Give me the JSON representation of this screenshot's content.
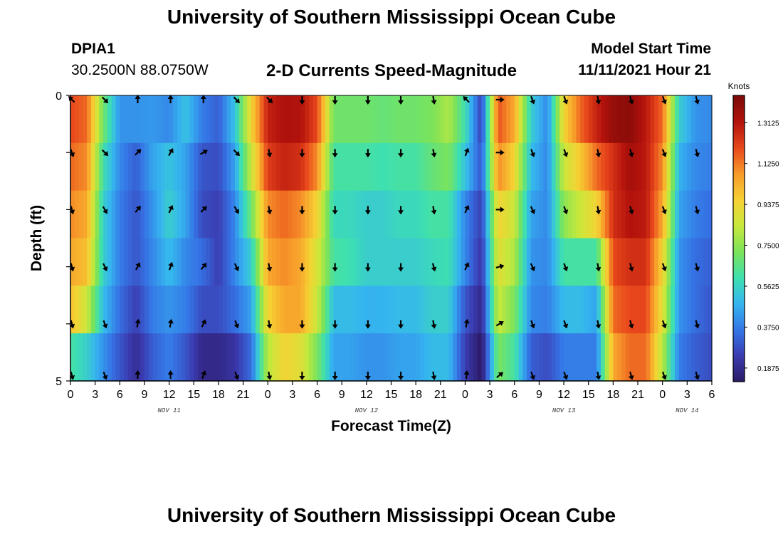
{
  "page": {
    "title_top": "University of Southern Mississippi Ocean Cube",
    "title_bottom": "University of Southern Mississippi Ocean Cube"
  },
  "station": {
    "id": "DPIA1",
    "coords": "30.2500N  88.0750W"
  },
  "model": {
    "start_label": "Model Start Time",
    "start_value": "11/11/2021 Hour 21"
  },
  "colors": {
    "palette": [
      "#2b1a66",
      "#3b3bb0",
      "#3575e6",
      "#35b5ef",
      "#3ee0b0",
      "#7be35a",
      "#c8e83c",
      "#f6d233",
      "#f79a2a",
      "#e8471c",
      "#b3120c",
      "#7a0a08"
    ]
  },
  "chart_data": {
    "type": "heatmap",
    "title": "2-D Currents Speed-Magnitude",
    "xlabel": "Forecast Time(Z)",
    "ylabel": "Depth (ft)",
    "x_tick_labels": [
      "0",
      "3",
      "6",
      "9",
      "12",
      "15",
      "18",
      "21",
      "0",
      "3",
      "6",
      "9",
      "12",
      "15",
      "18",
      "21",
      "0",
      "3",
      "6",
      "9",
      "12",
      "15",
      "18",
      "21",
      "0",
      "3",
      "6"
    ],
    "x_start_hour": 0,
    "x_end_hour": 78,
    "x_tick_step_hours": 3,
    "date_labels": [
      {
        "text": "NOV 11",
        "hour": 12
      },
      {
        "text": "NOV 12",
        "hour": 36
      },
      {
        "text": "NOV 13",
        "hour": 60
      },
      {
        "text": "NOV 14",
        "hour": 75
      }
    ],
    "y_range": [
      0,
      5
    ],
    "y_tick_labels": [
      "0",
      "",
      "",
      "",
      "",
      "5"
    ],
    "y_ticks": [
      0,
      1,
      2,
      3,
      4,
      5
    ],
    "colorbar": {
      "label": "Knots",
      "range": [
        0.125,
        1.4375
      ],
      "tick_values": [
        1.3125,
        1.125,
        0.9375,
        0.75,
        0.5625,
        0.375,
        0.1875
      ],
      "tick_labels": [
        "1.3125",
        "1.1250",
        "0.9375",
        "0.7500",
        "0.5625",
        "0.3750",
        "0.1875"
      ]
    },
    "time_keys_hours": [
      0,
      2,
      4,
      6,
      8,
      10,
      12,
      14,
      16,
      18,
      20,
      22,
      24,
      26,
      28,
      30,
      32,
      34,
      36,
      38,
      40,
      42,
      44,
      46,
      48,
      50,
      52,
      54,
      56,
      58,
      60,
      62,
      64,
      66,
      68,
      70,
      72,
      74,
      76,
      78
    ],
    "depth_rows": [
      [
        1.2,
        1.15,
        0.7,
        0.42,
        0.42,
        0.43,
        0.4,
        0.52,
        0.38,
        0.32,
        0.52,
        0.95,
        1.28,
        1.33,
        1.32,
        1.2,
        0.7,
        0.7,
        0.7,
        0.68,
        0.7,
        0.7,
        0.72,
        0.8,
        0.6,
        0.25,
        1.18,
        1.05,
        0.55,
        0.4,
        0.95,
        1.15,
        1.28,
        1.38,
        1.4,
        1.3,
        1.15,
        0.55,
        0.42,
        0.4
      ],
      [
        1.15,
        1.1,
        0.6,
        0.4,
        0.32,
        0.45,
        0.52,
        0.45,
        0.3,
        0.28,
        0.45,
        0.85,
        1.22,
        1.28,
        1.25,
        1.1,
        0.62,
        0.62,
        0.62,
        0.6,
        0.62,
        0.62,
        0.68,
        0.72,
        0.52,
        0.3,
        1.1,
        0.95,
        0.5,
        0.4,
        0.85,
        0.98,
        1.15,
        1.25,
        1.35,
        1.3,
        1.1,
        0.48,
        0.4,
        0.38
      ],
      [
        1.1,
        1.05,
        0.55,
        0.38,
        0.3,
        0.42,
        0.55,
        0.45,
        0.28,
        0.25,
        0.4,
        0.7,
        1.1,
        1.15,
        1.1,
        0.95,
        0.58,
        0.58,
        0.55,
        0.55,
        0.58,
        0.58,
        0.62,
        0.62,
        0.4,
        0.25,
        0.95,
        0.85,
        0.45,
        0.4,
        0.75,
        0.85,
        0.95,
        1.25,
        1.32,
        1.3,
        1.05,
        0.45,
        0.38,
        0.35
      ],
      [
        1.05,
        1.0,
        0.55,
        0.38,
        0.3,
        0.4,
        0.5,
        0.4,
        0.35,
        0.25,
        0.4,
        0.55,
        1.05,
        1.1,
        1.05,
        0.88,
        0.62,
        0.6,
        0.55,
        0.55,
        0.55,
        0.55,
        0.58,
        0.6,
        0.4,
        0.22,
        0.9,
        0.8,
        0.42,
        0.4,
        0.62,
        0.62,
        0.62,
        1.2,
        1.25,
        1.25,
        0.95,
        0.42,
        0.35,
        0.32
      ],
      [
        1.0,
        0.85,
        0.5,
        0.35,
        0.25,
        0.38,
        0.42,
        0.38,
        0.28,
        0.28,
        0.35,
        0.45,
        0.95,
        1.05,
        1.05,
        0.85,
        0.5,
        0.5,
        0.48,
        0.48,
        0.5,
        0.5,
        0.55,
        0.55,
        0.3,
        0.18,
        0.85,
        0.72,
        0.4,
        0.38,
        0.5,
        0.5,
        0.45,
        1.15,
        1.2,
        1.2,
        0.9,
        0.42,
        0.35,
        0.3
      ],
      [
        0.62,
        0.55,
        0.42,
        0.3,
        0.2,
        0.32,
        0.38,
        0.3,
        0.18,
        0.18,
        0.22,
        0.35,
        0.82,
        0.95,
        0.9,
        0.72,
        0.45,
        0.45,
        0.42,
        0.42,
        0.45,
        0.45,
        0.5,
        0.5,
        0.25,
        0.12,
        0.72,
        0.62,
        0.32,
        0.28,
        0.38,
        0.38,
        0.38,
        1.05,
        1.15,
        1.15,
        0.82,
        0.38,
        0.32,
        0.28
      ]
    ],
    "arrow_hours": [
      0,
      4,
      8,
      12,
      16,
      20,
      24,
      28,
      32,
      36,
      40,
      44,
      48,
      52,
      56,
      60,
      64,
      68,
      72,
      76
    ],
    "arrow_directions_deg": [
      [
        315,
        135,
        0,
        0,
        0,
        135,
        135,
        180,
        180,
        180,
        180,
        170,
        315,
        90,
        160,
        160,
        170,
        165,
        160,
        165
      ],
      [
        160,
        135,
        45,
        30,
        60,
        135,
        170,
        180,
        180,
        180,
        180,
        170,
        20,
        90,
        160,
        160,
        170,
        165,
        160,
        165
      ],
      [
        165,
        150,
        40,
        25,
        45,
        150,
        170,
        180,
        180,
        180,
        180,
        170,
        25,
        90,
        155,
        160,
        170,
        165,
        160,
        165
      ],
      [
        165,
        155,
        30,
        20,
        40,
        155,
        170,
        180,
        180,
        180,
        180,
        165,
        25,
        75,
        155,
        160,
        170,
        165,
        160,
        165
      ],
      [
        165,
        160,
        10,
        10,
        25,
        160,
        170,
        180,
        180,
        180,
        180,
        170,
        10,
        60,
        160,
        160,
        170,
        165,
        160,
        165
      ],
      [
        165,
        160,
        0,
        0,
        20,
        160,
        170,
        180,
        180,
        180,
        180,
        170,
        5,
        50,
        160,
        160,
        170,
        165,
        160,
        165
      ]
    ]
  }
}
